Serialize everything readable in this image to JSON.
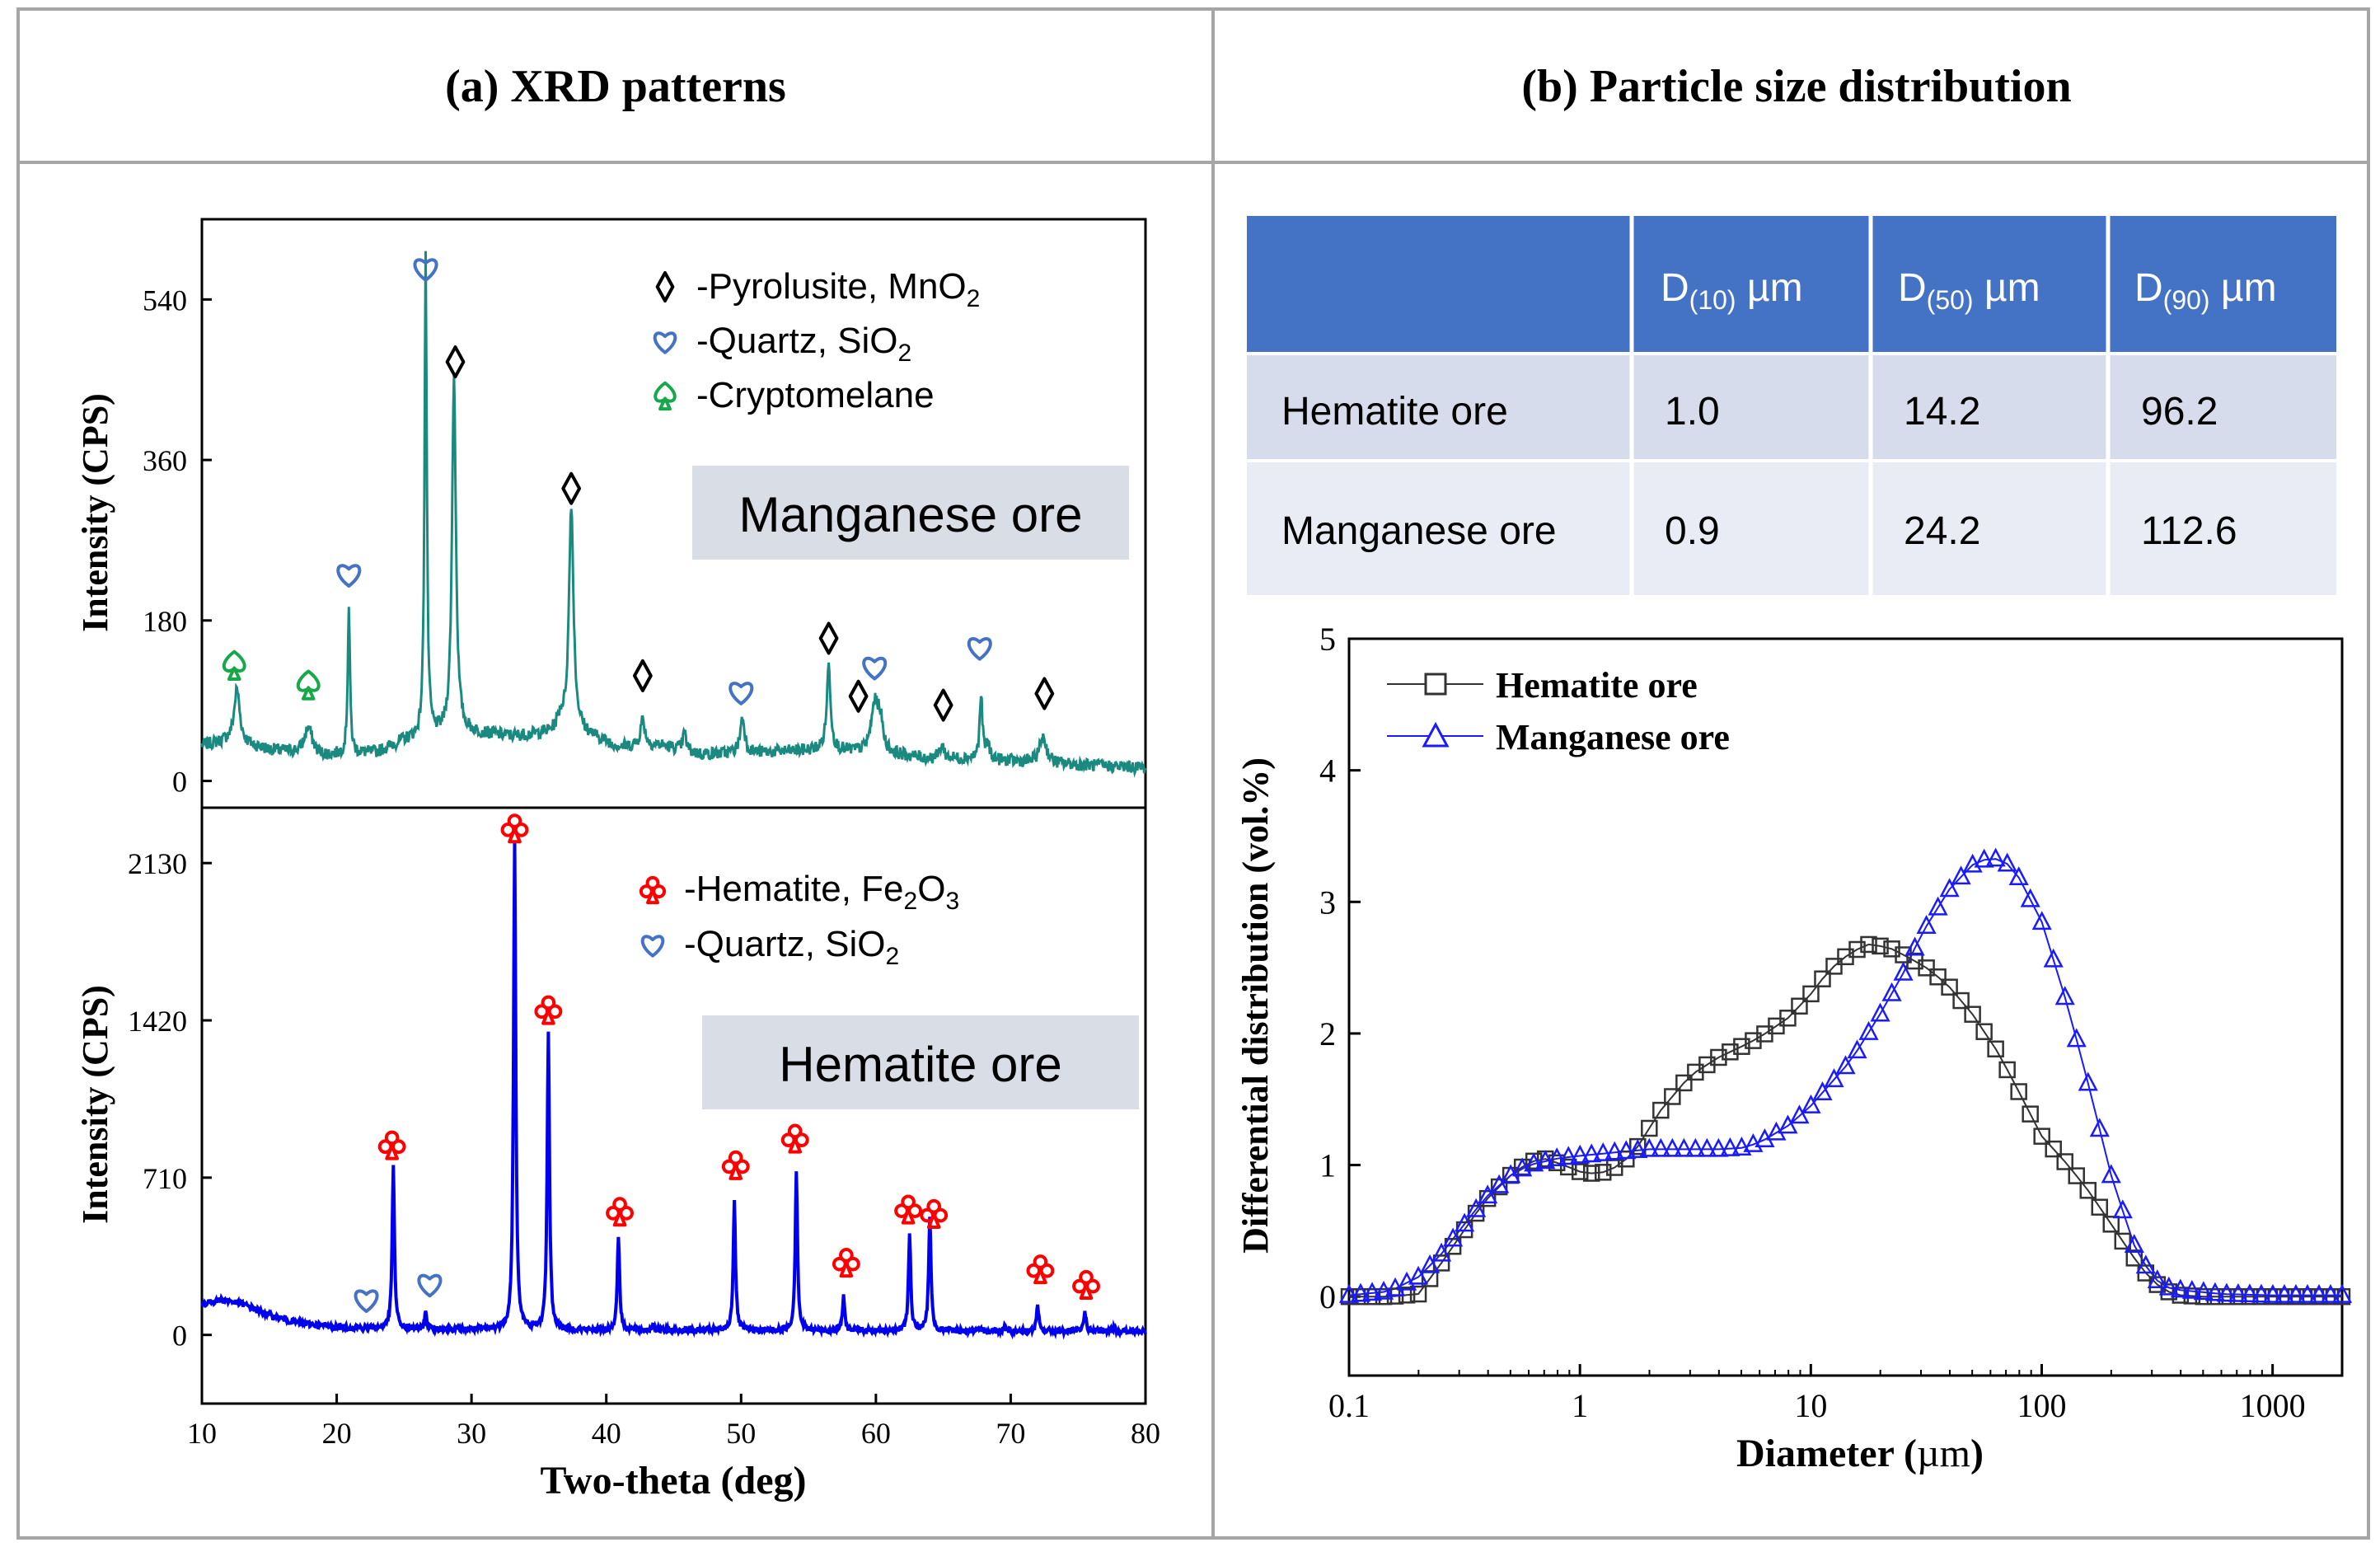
{
  "panels": {
    "a_title": "(a) XRD patterns",
    "b_title": "(b) Particle size distribution"
  },
  "colors": {
    "manganese_trace": "#1a8a80",
    "hematite_trace": "#0000ee",
    "pyrolusite": "#000000",
    "quartz": "#4472c4",
    "cryptomelane": "#17a84a",
    "hematite_marker": "#ff0000",
    "table_header": "#4472c4",
    "table_row_odd": "#d6dcec",
    "table_row_even": "#e9ecf5",
    "label_box": "#d9dde5",
    "psd_hematite": "#333333",
    "psd_manganese": "#1a1aff",
    "frame": "#a6a6a6"
  },
  "size_table": {
    "columns": [
      "",
      "D(10) µm",
      "D(50) µm",
      "D(90) µm"
    ],
    "header_main": [
      "D",
      "D",
      "D"
    ],
    "header_sub": [
      "(10)",
      "(50)",
      "(90)"
    ],
    "header_unit": [
      "µm",
      "µm",
      "µm"
    ],
    "rows": [
      {
        "name": "Hematite ore",
        "d10": "1.0",
        "d50": "14.2",
        "d90": "96.2"
      },
      {
        "name": "Manganese ore",
        "d10": "0.9",
        "d50": "24.2",
        "d90": "112.6"
      }
    ]
  },
  "chart_data": [
    {
      "type": "line",
      "id": "xrd_manganese",
      "title": "",
      "sample_label": "Manganese ore",
      "xlabel": "",
      "ylabel": "Intensity (CPS)",
      "xlim": [
        10,
        80
      ],
      "ylim": [
        -30,
        630
      ],
      "yticks": [
        0,
        180,
        360,
        540
      ],
      "baseline": [
        [
          10,
          40
        ],
        [
          12,
          45
        ],
        [
          15,
          35
        ],
        [
          19,
          28
        ],
        [
          23,
          32
        ],
        [
          25,
          45
        ],
        [
          29,
          55
        ],
        [
          33,
          50
        ],
        [
          38,
          55
        ],
        [
          41,
          38
        ],
        [
          44,
          40
        ],
        [
          47,
          30
        ],
        [
          52,
          32
        ],
        [
          56,
          35
        ],
        [
          61,
          30
        ],
        [
          64,
          25
        ],
        [
          67,
          25
        ],
        [
          70,
          22
        ],
        [
          75,
          18
        ],
        [
          80,
          15
        ]
      ],
      "peaks": [
        [
          12.6,
          60,
          0.25
        ],
        [
          17.9,
          30,
          0.35
        ],
        [
          20.9,
          165,
          0.1
        ],
        [
          26.6,
          540,
          0.1
        ],
        [
          28.7,
          400,
          0.17
        ],
        [
          36.6,
          15,
          0.3
        ],
        [
          37.4,
          255,
          0.2
        ],
        [
          42.7,
          30,
          0.2
        ],
        [
          45.8,
          20,
          0.15
        ],
        [
          50.1,
          40,
          0.2
        ],
        [
          56.5,
          95,
          0.17
        ],
        [
          59.9,
          50,
          0.3
        ],
        [
          60.3,
          35,
          0.25
        ],
        [
          64.9,
          15,
          0.2
        ],
        [
          67.8,
          70,
          0.12
        ],
        [
          68.3,
          15,
          0.2
        ],
        [
          72.4,
          30,
          0.3
        ]
      ],
      "legend": [
        {
          "marker": "diamond",
          "label": "-Pyrolusite, MnO",
          "sub": "2"
        },
        {
          "marker": "heart",
          "label": "-Quartz, SiO",
          "sub": "2"
        },
        {
          "marker": "spade",
          "label": "-Cryptomelane",
          "sub": ""
        }
      ],
      "annotations": [
        {
          "marker": "heart",
          "x": 26.6,
          "y": 575
        },
        {
          "marker": "diamond",
          "x": 28.8,
          "y": 470
        },
        {
          "marker": "diamond",
          "x": 37.4,
          "y": 328
        },
        {
          "marker": "heart",
          "x": 20.9,
          "y": 232
        },
        {
          "marker": "spade",
          "x": 12.4,
          "y": 130
        },
        {
          "marker": "spade",
          "x": 17.9,
          "y": 108
        },
        {
          "marker": "diamond",
          "x": 42.7,
          "y": 118
        },
        {
          "marker": "heart",
          "x": 50.0,
          "y": 100
        },
        {
          "marker": "diamond",
          "x": 56.5,
          "y": 160
        },
        {
          "marker": "heart",
          "x": 59.9,
          "y": 128
        },
        {
          "marker": "diamond",
          "x": 58.7,
          "y": 95
        },
        {
          "marker": "diamond",
          "x": 65.0,
          "y": 85
        },
        {
          "marker": "heart",
          "x": 67.7,
          "y": 150
        },
        {
          "marker": "diamond",
          "x": 72.5,
          "y": 98
        }
      ]
    },
    {
      "type": "line",
      "id": "xrd_hematite",
      "title": "",
      "sample_label": "Hematite ore",
      "xlabel": "Two-theta (deg)",
      "ylabel": "Intensity (CPS)",
      "xlim": [
        10,
        80
      ],
      "ylim": [
        -310,
        2380
      ],
      "yticks": [
        0,
        710,
        1420,
        2130
      ],
      "xticks": [
        10,
        20,
        30,
        40,
        50,
        60,
        70,
        80
      ],
      "baseline": [
        [
          10,
          140
        ],
        [
          11.5,
          160
        ],
        [
          13,
          140
        ],
        [
          15,
          90
        ],
        [
          17,
          55
        ],
        [
          20,
          35
        ],
        [
          25,
          28
        ],
        [
          30,
          25
        ],
        [
          40,
          22
        ],
        [
          50,
          20
        ],
        [
          60,
          20
        ],
        [
          70,
          18
        ],
        [
          80,
          15
        ]
      ],
      "peaks": [
        [
          24.2,
          730,
          0.1
        ],
        [
          26.6,
          70,
          0.1
        ],
        [
          33.2,
          2200,
          0.1
        ],
        [
          35.7,
          1350,
          0.1
        ],
        [
          40.9,
          430,
          0.1
        ],
        [
          43.5,
          30,
          0.1
        ],
        [
          49.5,
          590,
          0.1
        ],
        [
          54.1,
          715,
          0.1
        ],
        [
          57.6,
          150,
          0.1
        ],
        [
          62.5,
          430,
          0.1
        ],
        [
          64.0,
          520,
          0.1
        ],
        [
          69.6,
          30,
          0.1
        ],
        [
          72.0,
          110,
          0.1
        ],
        [
          75.5,
          95,
          0.1
        ],
        [
          77.7,
          25,
          0.1
        ]
      ],
      "legend": [
        {
          "marker": "club",
          "label": "-Hematite, Fe",
          "sub": "2",
          "rest": "O",
          "sub2": "3"
        },
        {
          "marker": "heart",
          "label": "-Quartz, SiO",
          "sub": "2",
          "rest": "",
          "sub2": ""
        }
      ],
      "annotations": [
        {
          "marker": "club",
          "x": 33.2,
          "y": 2290
        },
        {
          "marker": "club",
          "x": 35.7,
          "y": 1470
        },
        {
          "marker": "club",
          "x": 24.1,
          "y": 860
        },
        {
          "marker": "club",
          "x": 41.0,
          "y": 560
        },
        {
          "marker": "club",
          "x": 49.6,
          "y": 770
        },
        {
          "marker": "club",
          "x": 54.0,
          "y": 890
        },
        {
          "marker": "club",
          "x": 57.8,
          "y": 330
        },
        {
          "marker": "club",
          "x": 62.4,
          "y": 570
        },
        {
          "marker": "club",
          "x": 64.3,
          "y": 550
        },
        {
          "marker": "club",
          "x": 72.2,
          "y": 300
        },
        {
          "marker": "club",
          "x": 75.6,
          "y": 230
        },
        {
          "marker": "heart",
          "x": 22.2,
          "y": 160
        },
        {
          "marker": "heart",
          "x": 26.9,
          "y": 230
        }
      ]
    },
    {
      "type": "line",
      "id": "psd",
      "title": "",
      "xlabel": "Diameter (µm)",
      "xlabel_pre": "Diameter (",
      "xlabel_unit": "µm",
      "xlabel_post": ")",
      "ylabel": "Differential distribution (vol.%)",
      "xscale": "log",
      "xlim": [
        0.1,
        2000
      ],
      "ylim": [
        -0.6,
        5
      ],
      "xticks": [
        0.1,
        1,
        10,
        100,
        1000
      ],
      "xticklabels": [
        "0.1",
        "1",
        "10",
        "100",
        "1000"
      ],
      "yticks": [
        0,
        1,
        2,
        3,
        4,
        5
      ],
      "legend_position": "top-left",
      "series": [
        {
          "name": "Hematite ore",
          "marker": "square",
          "points": [
            [
              0.1,
              0
            ],
            [
              0.15,
              0
            ],
            [
              0.2,
              0.02
            ],
            [
              0.25,
              0.25
            ],
            [
              0.3,
              0.45
            ],
            [
              0.35,
              0.62
            ],
            [
              0.4,
              0.75
            ],
            [
              0.5,
              0.92
            ],
            [
              0.6,
              1.02
            ],
            [
              0.7,
              1.05
            ],
            [
              0.85,
              1.0
            ],
            [
              1.0,
              0.95
            ],
            [
              1.2,
              0.93
            ],
            [
              1.5,
              1.0
            ],
            [
              1.8,
              1.15
            ],
            [
              2.2,
              1.4
            ],
            [
              3,
              1.68
            ],
            [
              4,
              1.82
            ],
            [
              5,
              1.9
            ],
            [
              6,
              1.97
            ],
            [
              8,
              2.12
            ],
            [
              10,
              2.3
            ],
            [
              12,
              2.48
            ],
            [
              15,
              2.62
            ],
            [
              18,
              2.68
            ],
            [
              22,
              2.65
            ],
            [
              27,
              2.57
            ],
            [
              33,
              2.48
            ],
            [
              40,
              2.35
            ],
            [
              50,
              2.15
            ],
            [
              65,
              1.85
            ],
            [
              80,
              1.55
            ],
            [
              100,
              1.22
            ],
            [
              130,
              1.0
            ],
            [
              160,
              0.8
            ],
            [
              200,
              0.55
            ],
            [
              250,
              0.3
            ],
            [
              300,
              0.12
            ],
            [
              350,
              0.04
            ],
            [
              400,
              0.01
            ],
            [
              500,
              0
            ],
            [
              2000,
              0
            ]
          ]
        },
        {
          "name": "Manganese ore",
          "marker": "triangle",
          "points": [
            [
              0.1,
              0.01
            ],
            [
              0.15,
              0.04
            ],
            [
              0.2,
              0.15
            ],
            [
              0.25,
              0.32
            ],
            [
              0.3,
              0.5
            ],
            [
              0.35,
              0.65
            ],
            [
              0.4,
              0.77
            ],
            [
              0.5,
              0.92
            ],
            [
              0.6,
              1.0
            ],
            [
              0.8,
              1.05
            ],
            [
              1.0,
              1.07
            ],
            [
              1.5,
              1.1
            ],
            [
              2,
              1.12
            ],
            [
              3,
              1.12
            ],
            [
              4,
              1.12
            ],
            [
              5,
              1.13
            ],
            [
              6,
              1.17
            ],
            [
              8,
              1.3
            ],
            [
              10,
              1.45
            ],
            [
              15,
              1.8
            ],
            [
              20,
              2.15
            ],
            [
              25,
              2.45
            ],
            [
              30,
              2.75
            ],
            [
              40,
              3.1
            ],
            [
              50,
              3.28
            ],
            [
              60,
              3.34
            ],
            [
              70,
              3.3
            ],
            [
              80,
              3.18
            ],
            [
              100,
              2.85
            ],
            [
              130,
              2.2
            ],
            [
              160,
              1.6
            ],
            [
              200,
              0.92
            ],
            [
              250,
              0.4
            ],
            [
              300,
              0.15
            ],
            [
              350,
              0.07
            ],
            [
              400,
              0.05
            ],
            [
              600,
              0.02
            ],
            [
              1000,
              0.01
            ],
            [
              2000,
              0.01
            ]
          ]
        }
      ]
    }
  ]
}
